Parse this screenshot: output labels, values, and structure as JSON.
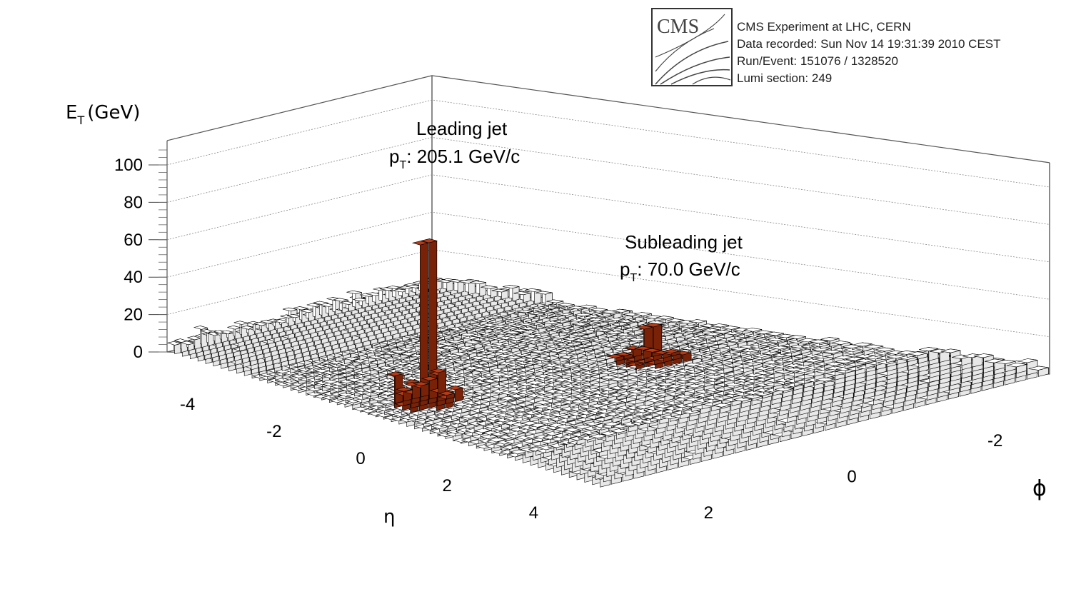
{
  "experiment_box": {
    "logo_text": "CMS",
    "lines": [
      "CMS Experiment at LHC, CERN",
      "Data recorded: Sun Nov 14 19:31:39 2010 CEST",
      "Run/Event: 151076 / 1328520",
      "Lumi section: 249"
    ]
  },
  "annotations": {
    "leading": {
      "title": "Leading jet",
      "p": "p",
      "sub": "T",
      "value": ": 205.1 GeV/c"
    },
    "subleading": {
      "title": "Subleading jet",
      "p": "p",
      "sub": "T",
      "value": ": 70.0 GeV/c"
    }
  },
  "colors": {
    "jet": "#b83a14",
    "jet_dark": "#7a2208",
    "background_tower": "#ffffff",
    "tower_edge": "#000000",
    "grid": "#888888"
  },
  "chart_data": {
    "type": "lego",
    "z_axis": {
      "label_main": "E",
      "label_sub": "T",
      "label_unit": "(GeV)",
      "ticks": [
        "0",
        "20",
        "40",
        "60",
        "80",
        "100"
      ],
      "range": [
        0,
        100
      ]
    },
    "x_axis": {
      "label": "η",
      "ticks": [
        "-4",
        "-2",
        "0",
        "2",
        "4"
      ],
      "range": [
        -5,
        5
      ]
    },
    "y_axis": {
      "label": "ϕ",
      "ticks": [
        "-2",
        "0",
        "2"
      ],
      "range": [
        -3.14,
        3.14
      ]
    },
    "grid": true,
    "jets": [
      {
        "name": "Leading jet",
        "pt": 205.1,
        "eta": -0.3,
        "phi": 2.2,
        "peak_et": 86
      },
      {
        "name": "Subleading jet",
        "pt": 70.0,
        "eta": 0.3,
        "phi": -1.2,
        "peak_et": 18
      }
    ]
  }
}
